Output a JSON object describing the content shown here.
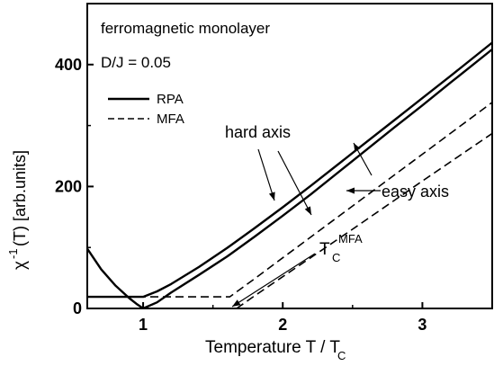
{
  "chart_data": {
    "type": "line",
    "xlabel": "Temperature  T / T",
    "xlabel_sub": "C",
    "ylabel": "χ",
    "ylabel_sup": "-1",
    "ylabel_rest": "(T)  [arb.units]",
    "xlim": [
      0.6,
      3.5
    ],
    "ylim": [
      0,
      500
    ],
    "xticks": [
      1,
      2,
      3
    ],
    "yticks": [
      0,
      200,
      400
    ],
    "grid": false,
    "legend_position": "upper-left",
    "annotations": {
      "system": "ferromagnetic monolayer",
      "ratio": "D/J = 0.05",
      "hard_axis": "hard axis",
      "easy_axis": "easy axis",
      "tc_mfa": "T",
      "tc_mfa_sub": "C",
      "tc_mfa_sup": "MFA"
    },
    "series": [
      {
        "name": "RPA",
        "group": "hard axis",
        "style": "solid",
        "x": [
          0.6,
          0.7,
          0.8,
          0.9,
          1.0,
          1.1,
          1.2,
          1.4,
          1.6,
          1.8,
          2.0,
          2.2,
          2.5,
          2.8,
          3.0,
          3.2,
          3.5
        ],
        "y": [
          19,
          19,
          19,
          19,
          19,
          28,
          40,
          68,
          99,
          132,
          166,
          201,
          255,
          309,
          345,
          381,
          436
        ]
      },
      {
        "name": "RPA",
        "group": "easy axis",
        "style": "solid",
        "x": [
          0.6,
          0.7,
          0.8,
          0.9,
          0.95,
          1.0,
          1.1,
          1.2,
          1.4,
          1.6,
          1.8,
          2.0,
          2.2,
          2.5,
          2.8,
          3.0,
          3.2,
          3.5
        ],
        "y": [
          98,
          64,
          38,
          17,
          8,
          0,
          10,
          26,
          55,
          85,
          118,
          152,
          187,
          242,
          297,
          333,
          370,
          425
        ]
      },
      {
        "name": "MFA",
        "group": "hard axis",
        "style": "dashed",
        "x": [
          0.6,
          1.0,
          1.4,
          1.62,
          1.8,
          2.0,
          2.5,
          3.0,
          3.5
        ],
        "y": [
          19,
          19,
          19,
          19,
          49,
          83,
          168,
          253,
          338
        ]
      },
      {
        "name": "MFA",
        "group": "easy axis",
        "style": "dashed",
        "x": [
          1.67,
          1.8,
          2.0,
          2.5,
          3.0,
          3.5
        ],
        "y": [
          0,
          21,
          52,
          130,
          209,
          287
        ]
      }
    ],
    "legend": [
      {
        "label": "RPA",
        "style": "solid"
      },
      {
        "label": "MFA",
        "style": "dashed"
      }
    ]
  }
}
